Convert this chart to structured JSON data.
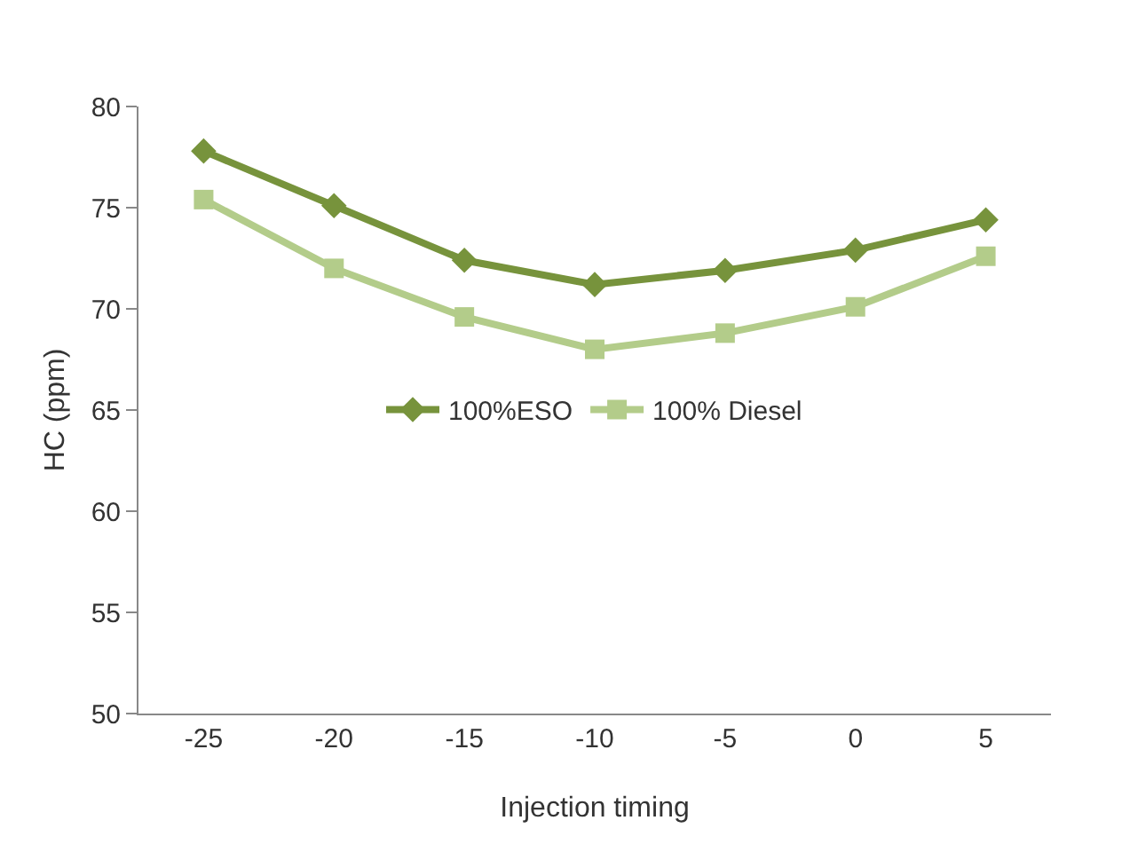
{
  "chart_data": {
    "type": "line",
    "xlabel": "Injection timing",
    "ylabel": "HC (ppm)",
    "categories": [
      "-25",
      "-20",
      "-15",
      "-10",
      "-5",
      "0",
      "5"
    ],
    "series": [
      {
        "name": "100%ESO",
        "color": "#77933c",
        "values": [
          77.8,
          75.1,
          72.4,
          71.2,
          71.9,
          72.9,
          74.4
        ],
        "marker": "diamond"
      },
      {
        "name": "100% Diesel",
        "color": "#b3cc8a",
        "values": [
          75.4,
          72.0,
          69.6,
          68.0,
          68.8,
          70.1,
          72.6
        ],
        "marker": "square"
      }
    ],
    "ylim": [
      50,
      80
    ],
    "yticks": [
      50,
      55,
      60,
      65,
      70,
      75,
      80
    ],
    "grid": false,
    "legend": "center",
    "line_style": "solid"
  }
}
